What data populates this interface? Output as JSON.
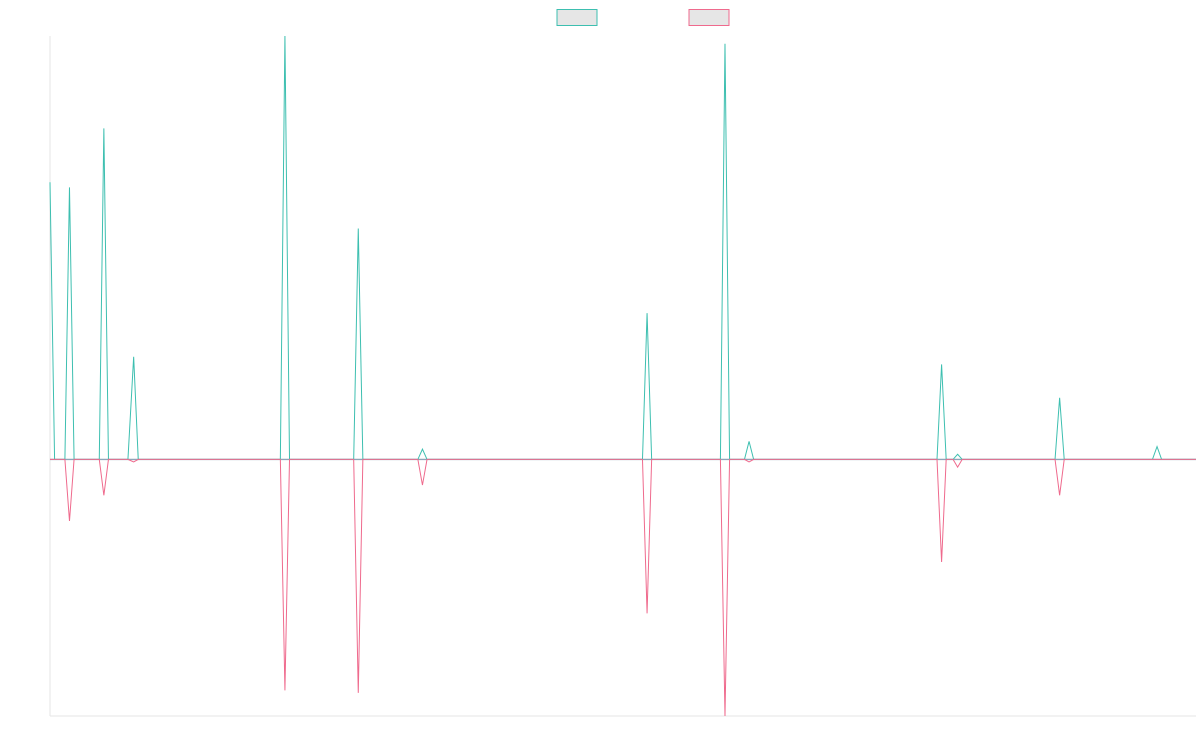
{
  "chart_data": {
    "type": "line",
    "title": "",
    "xlabel": "",
    "ylabel": "",
    "grid": false,
    "legend_position": "top-center",
    "xlim": [
      0,
      100
    ],
    "ylim": [
      -1,
      1.65
    ],
    "colors": {
      "positive": "#3dbfb0",
      "negative": "#ef6a8d",
      "baseline": "#8fa5b8",
      "axis": "#e6e6e6",
      "legend_fill": "#e6e6e6"
    },
    "series": [
      {
        "name": "",
        "color_key": "positive",
        "points": [
          [
            0,
            1.08
          ],
          [
            0.4,
            0
          ],
          [
            1.3,
            0
          ],
          [
            1.7,
            1.06
          ],
          [
            2.1,
            0
          ],
          [
            4.3,
            0
          ],
          [
            4.7,
            1.29
          ],
          [
            5.1,
            0
          ],
          [
            6.8,
            0
          ],
          [
            7.3,
            0.4
          ],
          [
            7.7,
            0
          ],
          [
            20.1,
            0
          ],
          [
            20.5,
            1.65
          ],
          [
            20.9,
            0
          ],
          [
            26.5,
            0
          ],
          [
            26.9,
            0.9
          ],
          [
            27.3,
            0
          ],
          [
            32.1,
            0
          ],
          [
            32.5,
            0.04
          ],
          [
            32.9,
            0
          ],
          [
            51.7,
            0
          ],
          [
            52.1,
            0.57
          ],
          [
            52.5,
            0
          ],
          [
            58.5,
            0
          ],
          [
            58.9,
            1.62
          ],
          [
            59.3,
            0
          ],
          [
            60.6,
            0
          ],
          [
            61,
            0.07
          ],
          [
            61.4,
            0
          ],
          [
            77.4,
            0
          ],
          [
            77.8,
            0.37
          ],
          [
            78.2,
            0
          ],
          [
            78.8,
            0
          ],
          [
            79.2,
            0.02
          ],
          [
            79.6,
            0
          ],
          [
            87.7,
            0
          ],
          [
            88.1,
            0.24
          ],
          [
            88.5,
            0
          ],
          [
            96.2,
            0
          ],
          [
            96.6,
            0.05
          ],
          [
            97,
            0
          ],
          [
            100,
            0
          ]
        ]
      },
      {
        "name": "",
        "color_key": "negative",
        "points": [
          [
            0,
            0
          ],
          [
            1.3,
            0
          ],
          [
            1.7,
            -0.24
          ],
          [
            2.1,
            0
          ],
          [
            4.3,
            0
          ],
          [
            4.7,
            -0.14
          ],
          [
            5.1,
            0
          ],
          [
            6.8,
            0
          ],
          [
            7.3,
            -0.01
          ],
          [
            7.7,
            0
          ],
          [
            20.1,
            0
          ],
          [
            20.5,
            -0.9
          ],
          [
            20.9,
            0
          ],
          [
            26.5,
            0
          ],
          [
            26.9,
            -0.91
          ],
          [
            27.3,
            0
          ],
          [
            32.1,
            0
          ],
          [
            32.5,
            -0.1
          ],
          [
            32.9,
            0
          ],
          [
            51.7,
            0
          ],
          [
            52.1,
            -0.6
          ],
          [
            52.5,
            0
          ],
          [
            58.5,
            0
          ],
          [
            58.9,
            -1
          ],
          [
            59.3,
            0
          ],
          [
            60.6,
            0
          ],
          [
            61,
            -0.01
          ],
          [
            61.4,
            0
          ],
          [
            77.4,
            0
          ],
          [
            77.8,
            -0.4
          ],
          [
            78.2,
            0
          ],
          [
            78.8,
            0
          ],
          [
            79.2,
            -0.03
          ],
          [
            79.6,
            0
          ],
          [
            87.7,
            0
          ],
          [
            88.1,
            -0.14
          ],
          [
            88.5,
            0
          ],
          [
            100,
            0
          ]
        ]
      }
    ]
  }
}
